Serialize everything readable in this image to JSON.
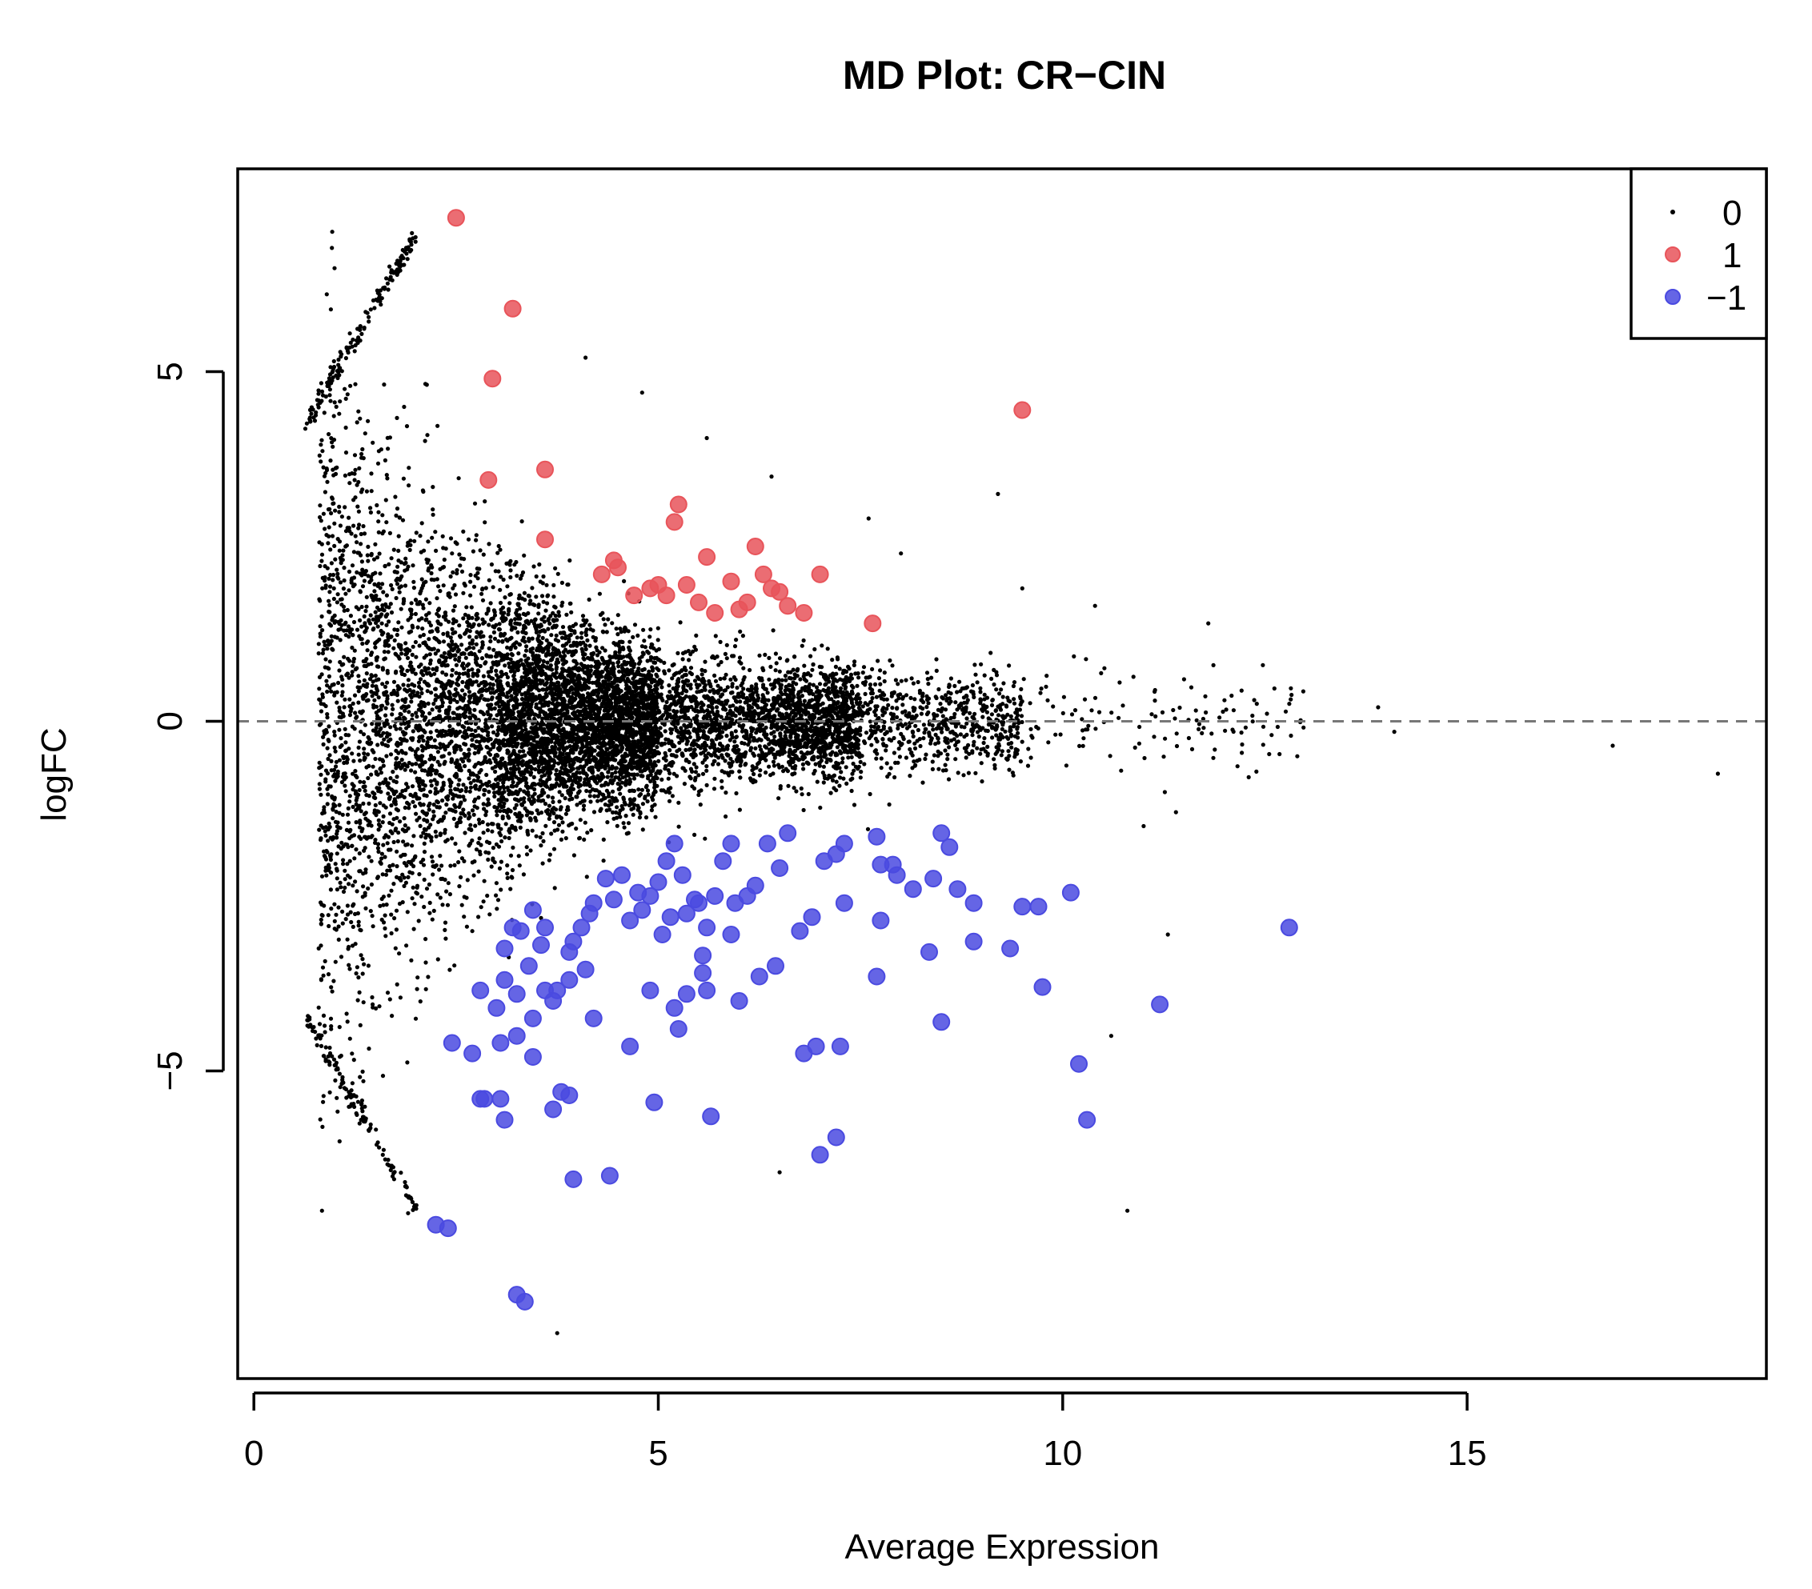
{
  "chart_data": {
    "type": "scatter",
    "title": "MD Plot: CR−CIN",
    "xlabel": "Average Expression",
    "ylabel": "logFC",
    "xlim": [
      -0.2,
      18.7
    ],
    "ylim": [
      -9.4,
      7.9
    ],
    "x_ticks": [
      {
        "value": 0,
        "label": "0"
      },
      {
        "value": 5,
        "label": "5"
      },
      {
        "value": 10,
        "label": "10"
      },
      {
        "value": 15,
        "label": "15"
      }
    ],
    "y_ticks": [
      {
        "value": -5,
        "label": "−5"
      },
      {
        "value": 0,
        "label": "0"
      },
      {
        "value": 5,
        "label": "5"
      }
    ],
    "reference_line": {
      "y": 0,
      "style": "dashed"
    },
    "grid": false,
    "legend": {
      "position": "top-right",
      "entries": [
        {
          "label": "0",
          "color": "#000000",
          "marker": "small-dot"
        },
        {
          "label": "1",
          "color": "#e8545a",
          "marker": "circle"
        },
        {
          "label": "−1",
          "color": "#4a4ae0",
          "marker": "circle"
        }
      ]
    },
    "series": [
      {
        "name": "1",
        "color": "#e8545a",
        "points": [
          [
            2.5,
            7.2
          ],
          [
            3.2,
            5.9
          ],
          [
            2.95,
            4.9
          ],
          [
            9.5,
            4.45
          ],
          [
            3.6,
            3.6
          ],
          [
            2.9,
            3.45
          ],
          [
            5.25,
            3.1
          ],
          [
            5.2,
            2.85
          ],
          [
            3.6,
            2.6
          ],
          [
            6.2,
            2.5
          ],
          [
            5.6,
            2.35
          ],
          [
            4.45,
            2.3
          ],
          [
            4.5,
            2.2
          ],
          [
            4.3,
            2.1
          ],
          [
            6.3,
            2.1
          ],
          [
            7.0,
            2.1
          ],
          [
            5.9,
            2.0
          ],
          [
            5.0,
            1.95
          ],
          [
            5.35,
            1.95
          ],
          [
            4.9,
            1.9
          ],
          [
            6.4,
            1.9
          ],
          [
            6.5,
            1.85
          ],
          [
            5.1,
            1.8
          ],
          [
            4.7,
            1.8
          ],
          [
            5.5,
            1.7
          ],
          [
            6.1,
            1.7
          ],
          [
            6.6,
            1.65
          ],
          [
            6.0,
            1.6
          ],
          [
            5.7,
            1.55
          ],
          [
            6.8,
            1.55
          ],
          [
            7.65,
            1.4
          ]
        ]
      },
      {
        "name": "−1",
        "color": "#4a4ae0",
        "points": [
          [
            12.8,
            -2.95
          ],
          [
            10.1,
            -2.45
          ],
          [
            11.2,
            -4.05
          ],
          [
            10.2,
            -4.9
          ],
          [
            10.3,
            -5.7
          ],
          [
            8.5,
            -1.6
          ],
          [
            8.6,
            -1.8
          ],
          [
            8.7,
            -2.4
          ],
          [
            8.9,
            -2.6
          ],
          [
            8.4,
            -2.25
          ],
          [
            9.5,
            -2.65
          ],
          [
            9.7,
            -2.65
          ],
          [
            9.35,
            -3.25
          ],
          [
            8.9,
            -3.15
          ],
          [
            8.35,
            -3.3
          ],
          [
            9.75,
            -3.8
          ],
          [
            8.5,
            -4.3
          ],
          [
            7.7,
            -1.65
          ],
          [
            7.95,
            -2.2
          ],
          [
            7.9,
            -2.05
          ],
          [
            8.15,
            -2.4
          ],
          [
            7.75,
            -2.05
          ],
          [
            7.3,
            -1.75
          ],
          [
            7.2,
            -1.9
          ],
          [
            7.05,
            -2.0
          ],
          [
            7.3,
            -2.6
          ],
          [
            6.9,
            -2.8
          ],
          [
            7.75,
            -2.85
          ],
          [
            6.75,
            -3.0
          ],
          [
            7.7,
            -3.65
          ],
          [
            6.6,
            -1.6
          ],
          [
            6.35,
            -1.75
          ],
          [
            6.5,
            -2.1
          ],
          [
            6.2,
            -2.35
          ],
          [
            6.45,
            -3.5
          ],
          [
            6.25,
            -3.65
          ],
          [
            5.95,
            -2.6
          ],
          [
            5.9,
            -3.05
          ],
          [
            6.0,
            -4.0
          ],
          [
            5.9,
            -1.75
          ],
          [
            5.8,
            -2.0
          ],
          [
            5.7,
            -2.5
          ],
          [
            5.5,
            -2.6
          ],
          [
            5.45,
            -2.55
          ],
          [
            5.35,
            -2.75
          ],
          [
            5.55,
            -3.35
          ],
          [
            5.35,
            -3.9
          ],
          [
            5.2,
            -4.1
          ],
          [
            5.25,
            -4.4
          ],
          [
            5.15,
            -2.8
          ],
          [
            5.05,
            -3.05
          ],
          [
            5.2,
            -1.75
          ],
          [
            5.1,
            -2.0
          ],
          [
            5.0,
            -2.3
          ],
          [
            4.9,
            -2.5
          ],
          [
            4.8,
            -2.7
          ],
          [
            4.65,
            -2.85
          ],
          [
            4.55,
            -2.2
          ],
          [
            4.45,
            -2.55
          ],
          [
            4.35,
            -2.25
          ],
          [
            4.2,
            -2.6
          ],
          [
            4.15,
            -2.75
          ],
          [
            4.05,
            -2.95
          ],
          [
            3.95,
            -3.15
          ],
          [
            4.1,
            -3.55
          ],
          [
            3.9,
            -3.7
          ],
          [
            3.75,
            -3.85
          ],
          [
            3.6,
            -2.95
          ],
          [
            3.55,
            -3.2
          ],
          [
            3.45,
            -2.7
          ],
          [
            3.3,
            -3.0
          ],
          [
            3.2,
            -2.95
          ],
          [
            3.1,
            -3.25
          ],
          [
            3.4,
            -3.5
          ],
          [
            3.25,
            -3.9
          ],
          [
            3.1,
            -3.7
          ],
          [
            2.8,
            -3.85
          ],
          [
            3.0,
            -4.1
          ],
          [
            3.6,
            -3.85
          ],
          [
            3.7,
            -4.0
          ],
          [
            3.45,
            -4.25
          ],
          [
            4.2,
            -4.25
          ],
          [
            4.9,
            -3.85
          ],
          [
            5.55,
            -3.6
          ],
          [
            5.6,
            -3.85
          ],
          [
            3.25,
            -4.5
          ],
          [
            3.05,
            -4.6
          ],
          [
            3.45,
            -4.8
          ],
          [
            2.45,
            -4.6
          ],
          [
            2.7,
            -4.75
          ],
          [
            4.65,
            -4.65
          ],
          [
            6.8,
            -4.75
          ],
          [
            6.95,
            -4.65
          ],
          [
            7.25,
            -4.65
          ],
          [
            2.8,
            -5.4
          ],
          [
            2.85,
            -5.4
          ],
          [
            3.05,
            -5.4
          ],
          [
            3.1,
            -5.7
          ],
          [
            3.7,
            -5.55
          ],
          [
            3.8,
            -5.3
          ],
          [
            3.9,
            -5.35
          ],
          [
            4.95,
            -5.45
          ],
          [
            5.65,
            -5.65
          ],
          [
            7.2,
            -5.95
          ],
          [
            7.0,
            -6.2
          ],
          [
            3.95,
            -6.55
          ],
          [
            4.4,
            -6.5
          ],
          [
            2.25,
            -7.2
          ],
          [
            2.4,
            -7.25
          ],
          [
            3.25,
            -8.2
          ],
          [
            3.35,
            -8.3
          ],
          [
            5.3,
            -2.2
          ],
          [
            4.75,
            -2.45
          ],
          [
            5.6,
            -2.95
          ],
          [
            6.1,
            -2.5
          ],
          [
            3.9,
            -3.3
          ]
        ]
      }
    ]
  }
}
